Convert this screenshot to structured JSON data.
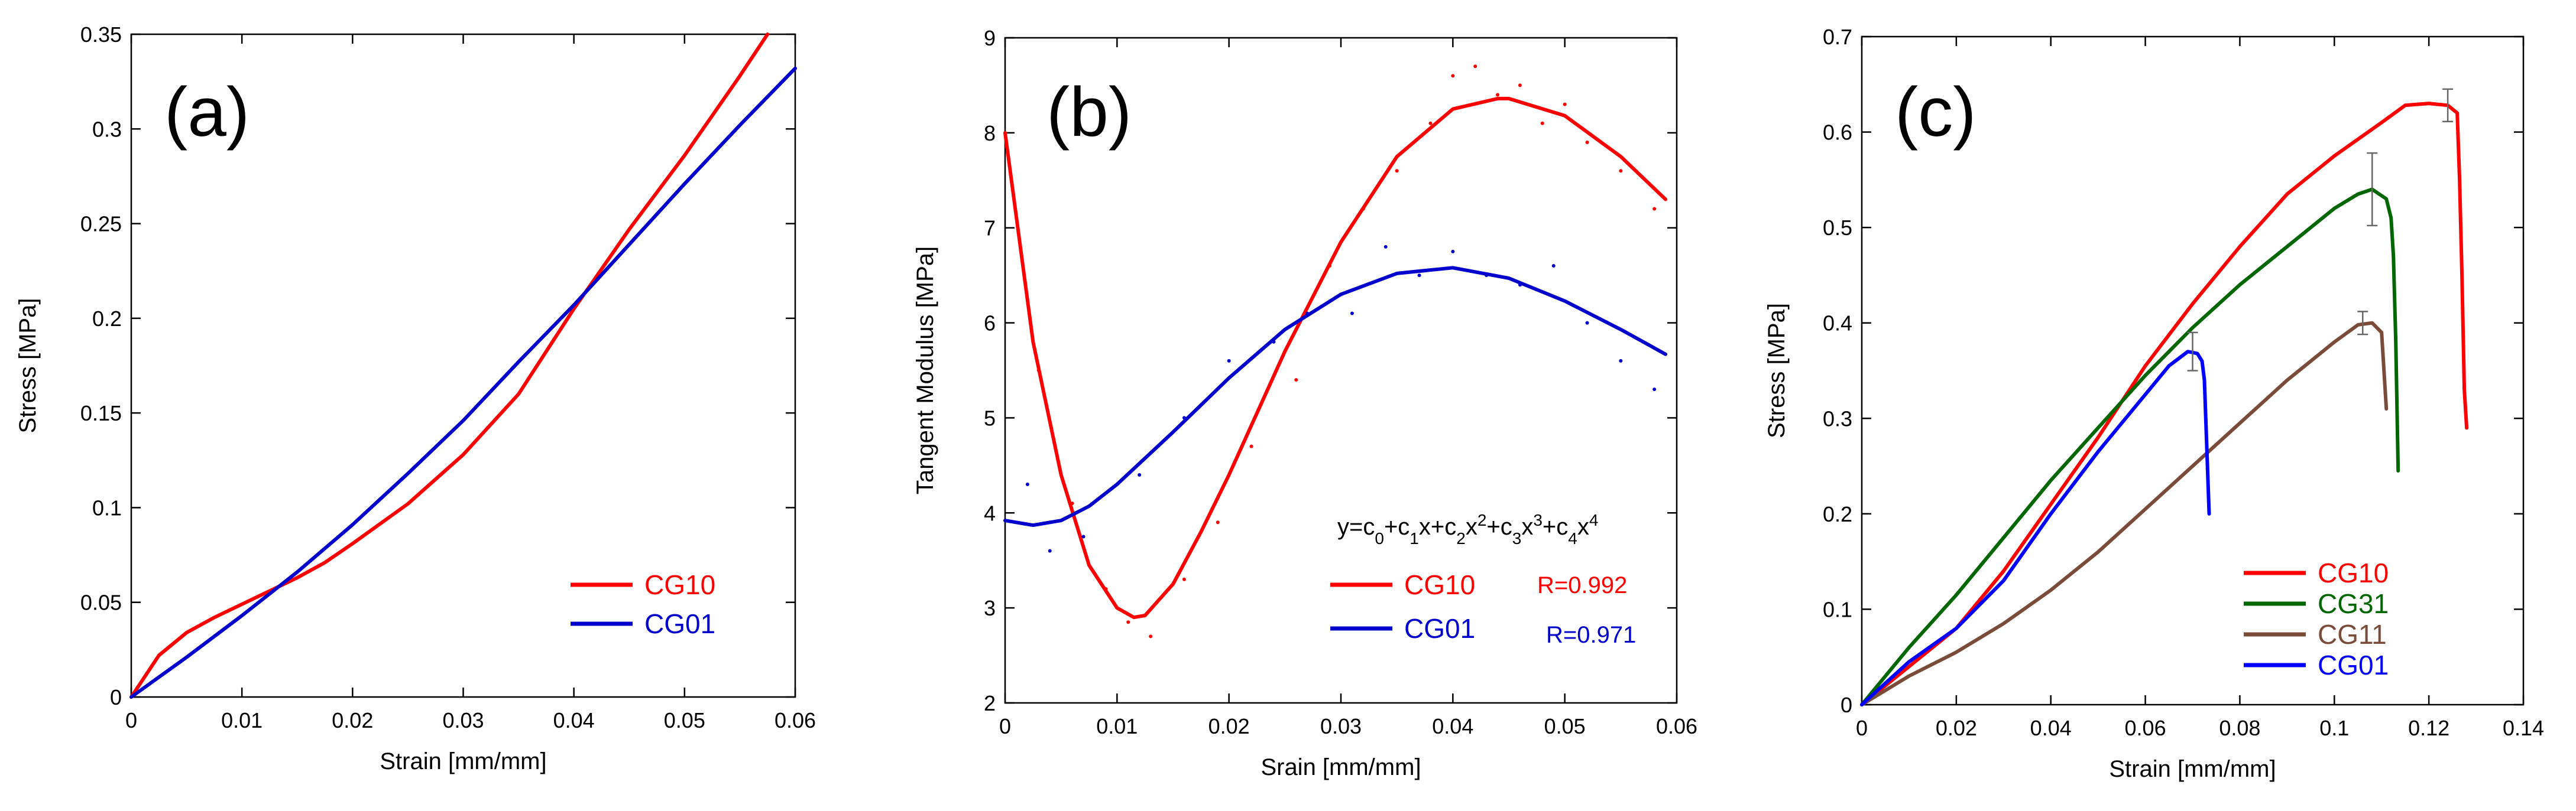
{
  "chart_data": [
    {
      "type": "line",
      "panel_label": "(a)",
      "title": "",
      "xlabel": "Strain [mm/mm]",
      "ylabel": "Stress [MPa]",
      "xlim": [
        0,
        0.06
      ],
      "ylim": [
        0,
        0.35
      ],
      "xticks": [
        0,
        0.01,
        0.02,
        0.03,
        0.04,
        0.05,
        0.06
      ],
      "xtick_labels": [
        "0",
        "0.01",
        "0.02",
        "0.03",
        "0.04",
        "0.05",
        "0.06"
      ],
      "yticks": [
        0,
        0.05,
        0.1,
        0.15,
        0.2,
        0.25,
        0.3,
        0.35
      ],
      "ytick_labels": [
        "0",
        "0.05",
        "0.1",
        "0.15",
        "0.2",
        "0.25",
        "0.3",
        "0.35"
      ],
      "grid": false,
      "legend": "bottom-right",
      "series": [
        {
          "name": "CG10",
          "color": "#ff0000",
          "x": [
            0,
            0.0025,
            0.005,
            0.0075,
            0.01,
            0.0125,
            0.015,
            0.0175,
            0.02,
            0.025,
            0.03,
            0.035,
            0.04,
            0.045,
            0.05,
            0.055,
            0.0575
          ],
          "y": [
            0,
            0.022,
            0.034,
            0.042,
            0.049,
            0.056,
            0.063,
            0.071,
            0.081,
            0.102,
            0.128,
            0.16,
            0.205,
            0.247,
            0.286,
            0.328,
            0.35
          ]
        },
        {
          "name": "CG01",
          "color": "#0000cc",
          "x": [
            0,
            0.005,
            0.01,
            0.015,
            0.02,
            0.025,
            0.03,
            0.035,
            0.04,
            0.045,
            0.05,
            0.055,
            0.06
          ],
          "y": [
            0,
            0.021,
            0.043,
            0.066,
            0.091,
            0.118,
            0.146,
            0.177,
            0.207,
            0.239,
            0.271,
            0.302,
            0.332
          ]
        }
      ]
    },
    {
      "type": "line",
      "panel_label": "(b)",
      "title": "",
      "xlabel": "Srain [mm/mm]",
      "ylabel": "Tangent Modulus [MPa]",
      "xlim": [
        0,
        0.06
      ],
      "ylim": [
        2,
        9
      ],
      "xticks": [
        0,
        0.01,
        0.02,
        0.03,
        0.04,
        0.05,
        0.06
      ],
      "xtick_labels": [
        "0",
        "0.01",
        "0.02",
        "0.03",
        "0.04",
        "0.05",
        "0.06"
      ],
      "yticks": [
        2,
        3,
        4,
        5,
        6,
        7,
        8,
        9
      ],
      "ytick_labels": [
        "2",
        "3",
        "4",
        "5",
        "6",
        "7",
        "8",
        "9"
      ],
      "grid": false,
      "legend": "bottom-right",
      "equation": {
        "parts": [
          "y=c",
          "0",
          "+c",
          "1",
          "x+c",
          "2",
          "x",
          "2",
          "+c",
          "3",
          "x",
          "3",
          "+c",
          "4",
          "x",
          "4"
        ]
      },
      "series": [
        {
          "name": "CG10",
          "color": "#ff0000",
          "r_label": "R=0.992",
          "x": [
            0,
            0.0025,
            0.005,
            0.0075,
            0.01,
            0.0115,
            0.0125,
            0.015,
            0.0175,
            0.02,
            0.025,
            0.03,
            0.035,
            0.04,
            0.044,
            0.045,
            0.05,
            0.055,
            0.059
          ],
          "y": [
            8.0,
            5.8,
            4.4,
            3.45,
            3.0,
            2.9,
            2.92,
            3.25,
            3.8,
            4.4,
            5.7,
            6.85,
            7.75,
            8.25,
            8.36,
            8.36,
            8.18,
            7.75,
            7.3
          ],
          "scatter_x": [
            0.003,
            0.006,
            0.009,
            0.011,
            0.013,
            0.016,
            0.019,
            0.022,
            0.026,
            0.029,
            0.032,
            0.035,
            0.038,
            0.04,
            0.042,
            0.044,
            0.046,
            0.048,
            0.05,
            0.052,
            0.055,
            0.058
          ],
          "scatter_y": [
            5.5,
            4.1,
            3.2,
            2.85,
            2.7,
            3.3,
            3.9,
            4.7,
            5.4,
            6.6,
            7.2,
            7.6,
            8.1,
            8.6,
            8.7,
            8.4,
            8.5,
            8.1,
            8.3,
            7.9,
            7.6,
            7.2
          ]
        },
        {
          "name": "CG01",
          "color": "#0000cc",
          "r_label": "R=0.971",
          "x": [
            0,
            0.0025,
            0.005,
            0.0075,
            0.01,
            0.015,
            0.02,
            0.025,
            0.03,
            0.035,
            0.04,
            0.045,
            0.05,
            0.055,
            0.059
          ],
          "y": [
            3.92,
            3.87,
            3.92,
            4.07,
            4.3,
            4.85,
            5.42,
            5.93,
            6.3,
            6.52,
            6.58,
            6.47,
            6.23,
            5.93,
            5.67
          ],
          "scatter_x": [
            0.002,
            0.004,
            0.007,
            0.012,
            0.016,
            0.02,
            0.024,
            0.027,
            0.031,
            0.034,
            0.037,
            0.04,
            0.043,
            0.046,
            0.049,
            0.052,
            0.055,
            0.058
          ],
          "scatter_y": [
            4.3,
            3.6,
            3.75,
            4.4,
            5.0,
            5.6,
            5.8,
            6.1,
            6.1,
            6.8,
            6.5,
            6.75,
            6.5,
            6.4,
            6.6,
            6.0,
            5.6,
            5.3
          ]
        }
      ]
    },
    {
      "type": "line",
      "panel_label": "(c)",
      "title": "",
      "xlabel": "Strain [mm/mm]",
      "ylabel": "Stress [MPa]",
      "xlim": [
        0,
        0.14
      ],
      "ylim": [
        0,
        0.7
      ],
      "xticks": [
        0,
        0.02,
        0.04,
        0.06,
        0.08,
        0.1,
        0.12,
        0.14
      ],
      "xtick_labels": [
        "0",
        "0.02",
        "0.04",
        "0.06",
        "0.08",
        "0.1",
        "0.12",
        "0.14"
      ],
      "yticks": [
        0,
        0.1,
        0.2,
        0.3,
        0.4,
        0.5,
        0.6,
        0.7
      ],
      "ytick_labels": [
        "0",
        "0.1",
        "0.2",
        "0.3",
        "0.4",
        "0.5",
        "0.6",
        "0.7"
      ],
      "grid": false,
      "legend": "bottom-right",
      "series": [
        {
          "name": "CG10",
          "color": "#ff0000",
          "x": [
            0,
            0.01,
            0.02,
            0.03,
            0.04,
            0.05,
            0.06,
            0.07,
            0.08,
            0.09,
            0.1,
            0.11,
            0.115,
            0.12,
            0.124,
            0.126,
            0.1265,
            0.127,
            0.1275,
            0.128
          ],
          "y": [
            0,
            0.04,
            0.08,
            0.14,
            0.21,
            0.28,
            0.355,
            0.42,
            0.48,
            0.535,
            0.575,
            0.61,
            0.628,
            0.63,
            0.628,
            0.62,
            0.55,
            0.45,
            0.33,
            0.29
          ],
          "error_bar": {
            "x": 0.124,
            "y": 0.628,
            "err": 0.017
          }
        },
        {
          "name": "CG31",
          "color": "#006600",
          "x": [
            0,
            0.01,
            0.02,
            0.03,
            0.04,
            0.05,
            0.06,
            0.07,
            0.08,
            0.09,
            0.1,
            0.105,
            0.108,
            0.111,
            0.112,
            0.1125,
            0.113,
            0.1135
          ],
          "y": [
            0,
            0.06,
            0.115,
            0.175,
            0.235,
            0.29,
            0.345,
            0.395,
            0.44,
            0.48,
            0.52,
            0.535,
            0.54,
            0.53,
            0.51,
            0.47,
            0.38,
            0.245
          ],
          "error_bar": {
            "x": 0.108,
            "y": 0.54,
            "err": 0.038
          }
        },
        {
          "name": "CG11",
          "color": "#7b4b3a",
          "x": [
            0,
            0.01,
            0.02,
            0.03,
            0.04,
            0.05,
            0.06,
            0.07,
            0.08,
            0.09,
            0.1,
            0.105,
            0.108,
            0.11,
            0.1105,
            0.111
          ],
          "y": [
            0,
            0.03,
            0.055,
            0.085,
            0.12,
            0.16,
            0.205,
            0.25,
            0.295,
            0.34,
            0.38,
            0.398,
            0.4,
            0.39,
            0.35,
            0.31
          ],
          "error_bar": {
            "x": 0.106,
            "y": 0.4,
            "err": 0.012
          }
        },
        {
          "name": "CG01",
          "color": "#0000ff",
          "x": [
            0,
            0.01,
            0.02,
            0.03,
            0.04,
            0.05,
            0.06,
            0.065,
            0.069,
            0.071,
            0.072,
            0.0725,
            0.073,
            0.0735
          ],
          "y": [
            0,
            0.045,
            0.08,
            0.13,
            0.2,
            0.265,
            0.325,
            0.355,
            0.37,
            0.368,
            0.36,
            0.34,
            0.27,
            0.2
          ],
          "error_bar": {
            "x": 0.07,
            "y": 0.37,
            "err": 0.02
          }
        }
      ]
    }
  ]
}
